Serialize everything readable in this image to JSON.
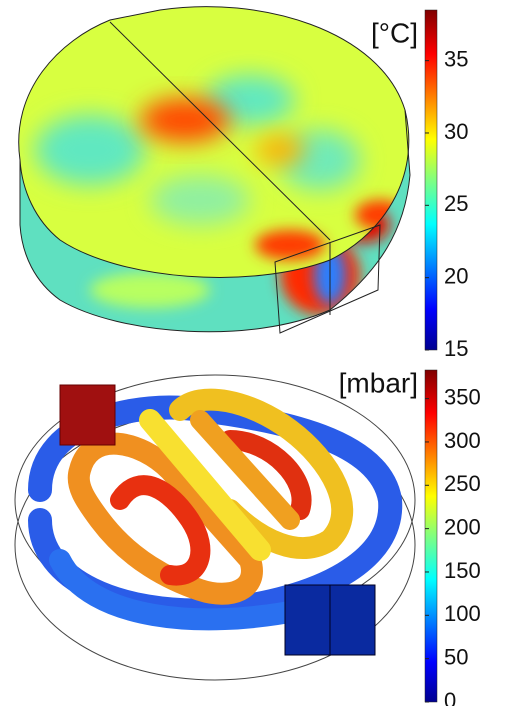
{
  "panels": [
    {
      "unit": "[°C]",
      "colorbar": {
        "lim": [
          15,
          38.5
        ],
        "ticks": [
          15,
          20,
          25,
          30,
          35
        ]
      }
    },
    {
      "unit": "[mbar]",
      "colorbar": {
        "lim": [
          0,
          383
        ],
        "ticks": [
          0,
          50,
          100,
          150,
          200,
          250,
          300,
          350
        ]
      }
    }
  ]
}
